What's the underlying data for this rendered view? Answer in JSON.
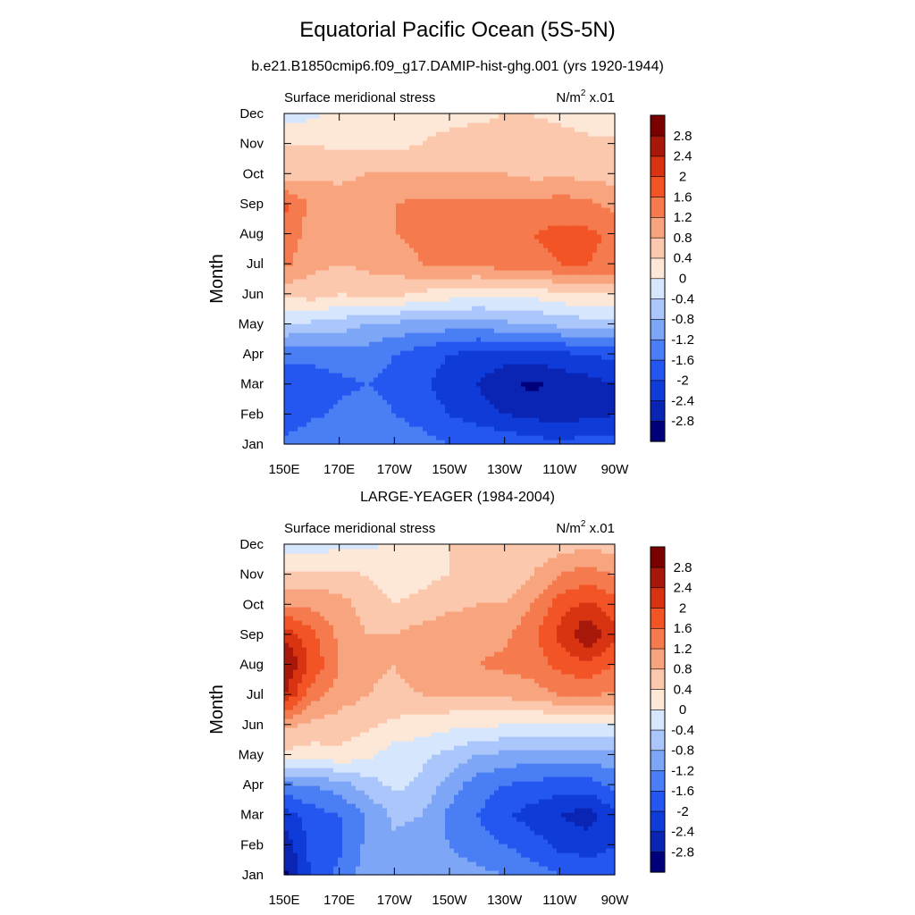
{
  "title": "Equatorial Pacific Ocean (5S-5N)",
  "subtitle": "b.e21.B1850cmip6.f09_g17.DAMIP-hist-ghg.001 (yrs 1920-1944)",
  "colorbar": {
    "levels": [
      "-2.8",
      "-2.4",
      "-2",
      "-1.6",
      "-1.2",
      "-0.8",
      "-0.4",
      "0",
      "0.4",
      "0.8",
      "1.2",
      "1.6",
      "2",
      "2.4",
      "2.8"
    ],
    "colors": [
      "#00007a",
      "#0a24b3",
      "#0f3bd8",
      "#2456f0",
      "#4a7ef5",
      "#7ea6f7",
      "#aac6fa",
      "#d5e6fd",
      "#fde8d8",
      "#fbc8ad",
      "#f8a57f",
      "#f57b4f",
      "#f35426",
      "#d83412",
      "#a8180a",
      "#7a0000"
    ]
  },
  "chart_data": [
    {
      "type": "heatmap",
      "panel_title": "",
      "left_label": "Surface meridional stress",
      "units_main": "N/m",
      "units_sup": "2",
      "units_scale": " x.01",
      "ylabel": "Month",
      "x_ticks": [
        "150E",
        "170E",
        "170W",
        "150W",
        "130W",
        "110W",
        "90W"
      ],
      "y_ticks": [
        "Jan",
        "Feb",
        "Mar",
        "Apr",
        "May",
        "Jun",
        "Jul",
        "Aug",
        "Sep",
        "Oct",
        "Nov",
        "Dec"
      ],
      "x_range": [
        "150E",
        "90W"
      ],
      "y_range": [
        "Jan",
        "Dec"
      ],
      "lon_points": [
        "150E",
        "160E",
        "170E",
        "180",
        "170W",
        "160W",
        "150W",
        "140W",
        "130W",
        "120W",
        "110W",
        "100W",
        "90W"
      ],
      "values": [
        [
          -1.4,
          -1.2,
          -1.2,
          -1.2,
          -1.3,
          -1.4,
          -1.6,
          -1.6,
          -1.7,
          -1.8,
          -1.9,
          -1.8,
          -1.8
        ],
        [
          -2.0,
          -1.7,
          -1.5,
          -1.4,
          -1.6,
          -1.8,
          -2.0,
          -2.2,
          -2.4,
          -2.5,
          -2.6,
          -2.5,
          -2.4
        ],
        [
          -1.8,
          -1.8,
          -1.7,
          -1.6,
          -1.7,
          -1.9,
          -2.2,
          -2.4,
          -2.7,
          -2.9,
          -2.7,
          -2.6,
          -2.4
        ],
        [
          -1.5,
          -1.5,
          -1.4,
          -1.4,
          -1.6,
          -1.8,
          -2.0,
          -2.2,
          -2.2,
          -2.2,
          -2.1,
          -2.0,
          -1.9
        ],
        [
          -0.4,
          -0.5,
          -0.6,
          -0.8,
          -0.9,
          -1.0,
          -1.0,
          -1.0,
          -0.9,
          -0.8,
          -0.7,
          -0.6,
          -0.5
        ],
        [
          0.5,
          0.6,
          0.4,
          0.5,
          0.5,
          0.3,
          0.2,
          0.1,
          0.1,
          0.1,
          0.3,
          0.4,
          0.4
        ],
        [
          1.3,
          0.9,
          0.8,
          0.9,
          1.0,
          1.2,
          1.3,
          1.3,
          1.4,
          1.5,
          1.6,
          1.6,
          1.5
        ],
        [
          1.5,
          1.0,
          1.0,
          1.1,
          1.2,
          1.3,
          1.3,
          1.4,
          1.4,
          1.6,
          1.7,
          1.7,
          1.5
        ],
        [
          1.7,
          1.1,
          1.0,
          1.1,
          1.2,
          1.3,
          1.3,
          1.3,
          1.3,
          1.3,
          1.4,
          1.3,
          1.1
        ],
        [
          0.6,
          0.7,
          0.7,
          0.8,
          0.8,
          0.8,
          0.8,
          0.8,
          0.8,
          0.7,
          0.7,
          0.7,
          0.6
        ],
        [
          0.4,
          0.4,
          0.3,
          0.3,
          0.3,
          0.4,
          0.5,
          0.6,
          0.6,
          0.6,
          0.6,
          0.5,
          0.5
        ],
        [
          -0.2,
          -0.1,
          0.1,
          0.2,
          0.3,
          0.3,
          0.3,
          0.3,
          0.4,
          0.4,
          0.3,
          0.2,
          0.1
        ]
      ]
    },
    {
      "type": "heatmap",
      "panel_title": "LARGE-YEAGER (1984-2004)",
      "left_label": "Surface meridional stress",
      "units_main": "N/m",
      "units_sup": "2",
      "units_scale": " x.01",
      "ylabel": "Month",
      "x_ticks": [
        "150E",
        "170E",
        "170W",
        "150W",
        "130W",
        "110W",
        "90W"
      ],
      "y_ticks": [
        "Jan",
        "Feb",
        "Mar",
        "Apr",
        "May",
        "Jun",
        "Jul",
        "Aug",
        "Sep",
        "Oct",
        "Nov",
        "Dec"
      ],
      "x_range": [
        "150E",
        "90W"
      ],
      "y_range": [
        "Jan",
        "Dec"
      ],
      "lon_points": [
        "150E",
        "160E",
        "170E",
        "180",
        "170W",
        "160W",
        "150W",
        "140W",
        "130W",
        "120W",
        "110W",
        "100W",
        "90W"
      ],
      "values": [
        [
          -2.9,
          -1.9,
          -1.5,
          -1.0,
          -0.9,
          -1.0,
          -1.0,
          -1.1,
          -1.2,
          -1.4,
          -1.6,
          -1.7,
          -1.8
        ],
        [
          -2.7,
          -1.9,
          -1.7,
          -1.1,
          -0.9,
          -1.0,
          -1.2,
          -1.4,
          -1.6,
          -1.8,
          -2.1,
          -2.2,
          -2.0
        ],
        [
          -2.2,
          -1.8,
          -1.6,
          -1.2,
          -0.7,
          -0.8,
          -1.3,
          -1.6,
          -1.9,
          -2.2,
          -2.4,
          -2.6,
          -2.1
        ],
        [
          -1.3,
          -1.2,
          -1.0,
          -0.6,
          -0.3,
          -0.5,
          -1.0,
          -1.4,
          -1.6,
          -1.7,
          -1.8,
          -1.8,
          -1.5
        ],
        [
          0.3,
          0.2,
          0.3,
          0.1,
          -0.2,
          -0.3,
          -0.5,
          -0.8,
          -0.9,
          -1.0,
          -1.0,
          -1.0,
          -0.9
        ],
        [
          0.9,
          0.7,
          0.6,
          0.5,
          0.3,
          0.2,
          0.1,
          0.1,
          0.0,
          -0.1,
          -0.1,
          -0.1,
          0.0
        ],
        [
          2.4,
          1.4,
          1.0,
          0.8,
          0.7,
          0.8,
          0.8,
          0.8,
          0.9,
          1.0,
          1.2,
          1.3,
          1.1
        ],
        [
          2.9,
          1.9,
          1.2,
          0.9,
          0.8,
          1.0,
          1.1,
          1.2,
          1.3,
          1.4,
          1.7,
          1.9,
          1.6
        ],
        [
          2.3,
          1.7,
          1.1,
          0.8,
          0.8,
          1.0,
          1.1,
          1.1,
          1.1,
          1.5,
          2.1,
          2.8,
          2.1
        ],
        [
          1.2,
          1.1,
          1.0,
          0.6,
          0.4,
          0.5,
          0.7,
          0.8,
          0.8,
          1.2,
          1.8,
          2.1,
          1.8
        ],
        [
          0.5,
          0.5,
          0.5,
          0.4,
          0.2,
          0.3,
          0.4,
          0.5,
          0.5,
          0.8,
          1.2,
          1.4,
          1.2
        ],
        [
          -0.3,
          -0.2,
          -0.1,
          -0.1,
          0.1,
          0.3,
          0.4,
          0.4,
          0.4,
          0.5,
          0.6,
          0.7,
          0.6
        ]
      ]
    }
  ]
}
